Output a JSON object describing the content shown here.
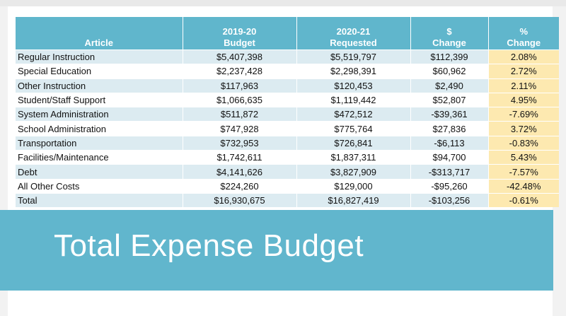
{
  "table": {
    "headers": {
      "article": "Article",
      "budget_line1": "2019-20",
      "budget_line2": "Budget",
      "requested_line1": "2020-21",
      "requested_line2": "Requested",
      "change_line1": "$",
      "change_line2": "Change",
      "pct_line1": "%",
      "pct_line2": "Change"
    },
    "rows": [
      {
        "article": "Regular Instruction",
        "budget": "$5,407,398",
        "requested": "$5,519,797",
        "change": "$112,399",
        "pct": "2.08%"
      },
      {
        "article": "Special Education",
        "budget": "$2,237,428",
        "requested": "$2,298,391",
        "change": "$60,962",
        "pct": "2.72%"
      },
      {
        "article": "Other Instruction",
        "budget": "$117,963",
        "requested": "$120,453",
        "change": "$2,490",
        "pct": "2.11%"
      },
      {
        "article": "Student/Staff Support",
        "budget": "$1,066,635",
        "requested": "$1,119,442",
        "change": "$52,807",
        "pct": "4.95%"
      },
      {
        "article": "System Administration",
        "budget": "$511,872",
        "requested": "$472,512",
        "change": "-$39,361",
        "pct": "-7.69%"
      },
      {
        "article": "School Administration",
        "budget": "$747,928",
        "requested": "$775,764",
        "change": "$27,836",
        "pct": "3.72%"
      },
      {
        "article": "Transportation",
        "budget": "$732,953",
        "requested": "$726,841",
        "change": "-$6,113",
        "pct": "-0.83%"
      },
      {
        "article": "Facilities/Maintenance",
        "budget": "$1,742,611",
        "requested": "$1,837,311",
        "change": "$94,700",
        "pct": "5.43%"
      },
      {
        "article": "Debt",
        "budget": "$4,141,626",
        "requested": "$3,827,909",
        "change": "-$313,717",
        "pct": "-7.57%"
      },
      {
        "article": "All Other Costs",
        "budget": "$224,260",
        "requested": "$129,000",
        "change": "-$95,260",
        "pct": "-42.48%"
      },
      {
        "article": "Total",
        "budget": "$16,930,675",
        "requested": "$16,827,419",
        "change": "-$103,256",
        "pct": "-0.61%"
      }
    ]
  },
  "slide_title": "Total Expense Budget",
  "colors": {
    "header": "#60b6cc",
    "band": "#dcebf1",
    "pct_highlight": "#fde9b0",
    "banner": "#61b6cd"
  }
}
